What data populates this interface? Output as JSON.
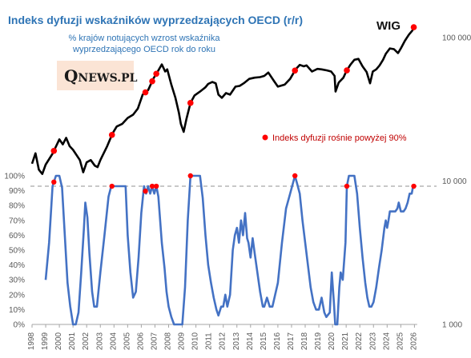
{
  "chart_data": {
    "type": "line",
    "title": "Indeks dyfuzji wskaźników wyprzedzających OECD (r/r)",
    "subtitle_line1": "% krajów notujących wzrost wskaźnika",
    "subtitle_line2": "wyprzedzającego OECD rok do roku",
    "logo_text": "QNEWS.PL",
    "series_label_wig": "WIG",
    "legend_marker": "Indeks dyfuzji rośnie powyżej 90%",
    "left_axis_ticks": [
      "100%",
      "90%",
      "80%",
      "70%",
      "60%",
      "50%",
      "40%",
      "30%",
      "20%",
      "10%",
      "0%"
    ],
    "right_axis_ticks": [
      "100 000",
      "10 000",
      "1 000"
    ],
    "x_tick_labels": [
      "1998",
      "1999",
      "2000",
      "2001",
      "2002",
      "2003",
      "2004",
      "2005",
      "2006",
      "2007",
      "2008",
      "2009",
      "2010",
      "2011",
      "2012",
      "2013",
      "2014",
      "2015",
      "2016",
      "2017",
      "2018",
      "2019",
      "2020",
      "2021",
      "2022",
      "2023",
      "2024",
      "2025",
      "2026"
    ],
    "threshold_percent": 93,
    "diffusion_index": {
      "name": "Indeks dyfuzji",
      "scale": "percent",
      "points": [
        [
          1999.0,
          30
        ],
        [
          1999.25,
          55
        ],
        [
          1999.5,
          93
        ],
        [
          1999.75,
          100
        ],
        [
          2000.0,
          100
        ],
        [
          2000.2,
          92
        ],
        [
          2000.4,
          60
        ],
        [
          2000.6,
          28
        ],
        [
          2000.8,
          12
        ],
        [
          2001.0,
          0
        ],
        [
          2001.2,
          0
        ],
        [
          2001.4,
          8
        ],
        [
          2001.6,
          35
        ],
        [
          2001.8,
          65
        ],
        [
          2001.9,
          82
        ],
        [
          2002.05,
          72
        ],
        [
          2002.2,
          48
        ],
        [
          2002.4,
          22
        ],
        [
          2002.55,
          12
        ],
        [
          2002.75,
          12
        ],
        [
          2003.0,
          35
        ],
        [
          2003.3,
          60
        ],
        [
          2003.6,
          86
        ],
        [
          2003.8,
          93
        ],
        [
          2004.0,
          93
        ],
        [
          2004.5,
          93
        ],
        [
          2004.85,
          93
        ],
        [
          2005.0,
          60
        ],
        [
          2005.2,
          35
        ],
        [
          2005.4,
          18
        ],
        [
          2005.6,
          22
        ],
        [
          2005.8,
          45
        ],
        [
          2006.0,
          75
        ],
        [
          2006.2,
          93
        ],
        [
          2006.35,
          88
        ],
        [
          2006.5,
          93
        ],
        [
          2006.65,
          88
        ],
        [
          2006.8,
          93
        ],
        [
          2006.95,
          88
        ],
        [
          2007.1,
          93
        ],
        [
          2007.25,
          86
        ],
        [
          2007.5,
          55
        ],
        [
          2007.7,
          38
        ],
        [
          2007.85,
          22
        ],
        [
          2008.0,
          12
        ],
        [
          2008.2,
          5
        ],
        [
          2008.4,
          0
        ],
        [
          2008.7,
          0
        ],
        [
          2009.0,
          0
        ],
        [
          2009.2,
          25
        ],
        [
          2009.4,
          70
        ],
        [
          2009.6,
          100
        ],
        [
          2009.8,
          100
        ],
        [
          2010.0,
          100
        ],
        [
          2010.3,
          100
        ],
        [
          2010.5,
          85
        ],
        [
          2010.7,
          60
        ],
        [
          2010.9,
          40
        ],
        [
          2011.1,
          28
        ],
        [
          2011.3,
          18
        ],
        [
          2011.5,
          10
        ],
        [
          2011.65,
          6
        ],
        [
          2011.85,
          12
        ],
        [
          2012.0,
          12
        ],
        [
          2012.15,
          20
        ],
        [
          2012.3,
          12
        ],
        [
          2012.5,
          20
        ],
        [
          2012.7,
          50
        ],
        [
          2012.85,
          60
        ],
        [
          2013.0,
          65
        ],
        [
          2013.15,
          55
        ],
        [
          2013.3,
          70
        ],
        [
          2013.45,
          60
        ],
        [
          2013.6,
          75
        ],
        [
          2013.75,
          58
        ],
        [
          2013.85,
          55
        ],
        [
          2014.0,
          45
        ],
        [
          2014.15,
          58
        ],
        [
          2014.3,
          48
        ],
        [
          2014.5,
          35
        ],
        [
          2014.7,
          22
        ],
        [
          2014.9,
          12
        ],
        [
          2015.0,
          12
        ],
        [
          2015.2,
          18
        ],
        [
          2015.4,
          12
        ],
        [
          2015.6,
          12
        ],
        [
          2015.8,
          20
        ],
        [
          2016.0,
          28
        ],
        [
          2016.3,
          55
        ],
        [
          2016.6,
          78
        ],
        [
          2016.9,
          88
        ],
        [
          2017.1,
          95
        ],
        [
          2017.25,
          100
        ],
        [
          2017.4,
          95
        ],
        [
          2017.6,
          88
        ],
        [
          2017.8,
          70
        ],
        [
          2018.0,
          55
        ],
        [
          2018.2,
          40
        ],
        [
          2018.4,
          25
        ],
        [
          2018.6,
          15
        ],
        [
          2018.8,
          10
        ],
        [
          2019.0,
          10
        ],
        [
          2019.2,
          18
        ],
        [
          2019.4,
          8
        ],
        [
          2019.55,
          5
        ],
        [
          2019.8,
          8
        ],
        [
          2019.95,
          35
        ],
        [
          2020.1,
          15
        ],
        [
          2020.2,
          0
        ],
        [
          2020.35,
          0
        ],
        [
          2020.5,
          25
        ],
        [
          2020.6,
          35
        ],
        [
          2020.75,
          30
        ],
        [
          2020.95,
          55
        ],
        [
          2021.05,
          93
        ],
        [
          2021.2,
          100
        ],
        [
          2021.4,
          100
        ],
        [
          2021.6,
          100
        ],
        [
          2021.8,
          88
        ],
        [
          2022.0,
          65
        ],
        [
          2022.2,
          45
        ],
        [
          2022.4,
          28
        ],
        [
          2022.55,
          18
        ],
        [
          2022.7,
          12
        ],
        [
          2022.85,
          12
        ],
        [
          2023.0,
          15
        ],
        [
          2023.2,
          25
        ],
        [
          2023.4,
          38
        ],
        [
          2023.6,
          50
        ],
        [
          2023.8,
          65
        ],
        [
          2023.9,
          70
        ],
        [
          2024.0,
          65
        ],
        [
          2024.1,
          70
        ],
        [
          2024.2,
          76
        ],
        [
          2024.4,
          76
        ],
        [
          2024.6,
          76
        ],
        [
          2024.75,
          78
        ],
        [
          2024.85,
          82
        ],
        [
          2025.0,
          76
        ],
        [
          2025.2,
          76
        ],
        [
          2025.35,
          78
        ],
        [
          2025.5,
          82
        ],
        [
          2025.65,
          88
        ],
        [
          2025.8,
          88
        ],
        [
          2025.9,
          93
        ]
      ]
    },
    "wig_index": {
      "name": "WIG",
      "scale": "log",
      "ylim": [
        1000,
        100000
      ],
      "points": [
        [
          1998.0,
          13200
        ],
        [
          1998.25,
          15600
        ],
        [
          1998.5,
          12000
        ],
        [
          1998.75,
          11200
        ],
        [
          1999.0,
          13000
        ],
        [
          1999.5,
          15500
        ],
        [
          2000.0,
          19500
        ],
        [
          2000.25,
          18000
        ],
        [
          2000.5,
          20000
        ],
        [
          2000.75,
          17500
        ],
        [
          2001.0,
          16500
        ],
        [
          2001.5,
          14000
        ],
        [
          2001.75,
          11500
        ],
        [
          2002.0,
          13500
        ],
        [
          2002.3,
          14000
        ],
        [
          2002.6,
          12800
        ],
        [
          2002.8,
          12500
        ],
        [
          2003.0,
          14000
        ],
        [
          2003.5,
          17500
        ],
        [
          2003.9,
          21500
        ],
        [
          2004.2,
          24000
        ],
        [
          2004.6,
          25000
        ],
        [
          2005.0,
          27500
        ],
        [
          2005.4,
          29000
        ],
        [
          2005.75,
          32000
        ],
        [
          2006.1,
          40000
        ],
        [
          2006.5,
          43000
        ],
        [
          2006.9,
          52000
        ],
        [
          2007.2,
          58000
        ],
        [
          2007.5,
          65000
        ],
        [
          2007.75,
          58000
        ],
        [
          2007.9,
          60000
        ],
        [
          2008.2,
          47000
        ],
        [
          2008.5,
          38000
        ],
        [
          2008.75,
          30000
        ],
        [
          2008.9,
          25000
        ],
        [
          2009.1,
          22000
        ],
        [
          2009.3,
          27000
        ],
        [
          2009.6,
          35000
        ],
        [
          2009.9,
          39500
        ],
        [
          2010.3,
          42000
        ],
        [
          2010.7,
          45000
        ],
        [
          2010.9,
          47500
        ],
        [
          2011.2,
          49000
        ],
        [
          2011.45,
          48000
        ],
        [
          2011.65,
          40000
        ],
        [
          2011.9,
          38000
        ],
        [
          2012.2,
          41000
        ],
        [
          2012.5,
          40000
        ],
        [
          2012.9,
          45500
        ],
        [
          2013.2,
          46000
        ],
        [
          2013.5,
          48000
        ],
        [
          2013.9,
          51500
        ],
        [
          2014.3,
          52500
        ],
        [
          2014.7,
          53000
        ],
        [
          2015.0,
          54000
        ],
        [
          2015.3,
          57000
        ],
        [
          2015.7,
          50000
        ],
        [
          2016.0,
          45500
        ],
        [
          2016.5,
          47000
        ],
        [
          2016.9,
          51500
        ],
        [
          2017.3,
          60000
        ],
        [
          2017.6,
          64500
        ],
        [
          2017.9,
          63000
        ],
        [
          2018.1,
          64000
        ],
        [
          2018.5,
          58000
        ],
        [
          2018.9,
          60500
        ],
        [
          2019.2,
          60000
        ],
        [
          2019.6,
          59000
        ],
        [
          2019.9,
          58000
        ],
        [
          2020.15,
          54000
        ],
        [
          2020.22,
          42000
        ],
        [
          2020.45,
          48500
        ],
        [
          2020.8,
          52500
        ],
        [
          2021.0,
          58000
        ],
        [
          2021.3,
          64500
        ],
        [
          2021.6,
          70000
        ],
        [
          2021.9,
          71000
        ],
        [
          2022.2,
          63000
        ],
        [
          2022.5,
          57500
        ],
        [
          2022.75,
          48000
        ],
        [
          2022.95,
          58000
        ],
        [
          2023.2,
          60000
        ],
        [
          2023.45,
          64000
        ],
        [
          2023.7,
          70000
        ],
        [
          2023.9,
          77000
        ],
        [
          2024.2,
          84000
        ],
        [
          2024.5,
          83000
        ],
        [
          2024.8,
          78000
        ],
        [
          2025.0,
          84000
        ],
        [
          2025.3,
          95000
        ],
        [
          2025.6,
          105000
        ],
        [
          2025.85,
          112000
        ],
        [
          2025.95,
          118000
        ]
      ]
    },
    "highlight_dates": [
      1999.6,
      2003.85,
      2006.3,
      2006.8,
      2007.1,
      2009.6,
      2017.25,
      2021.05,
      2025.95
    ]
  }
}
